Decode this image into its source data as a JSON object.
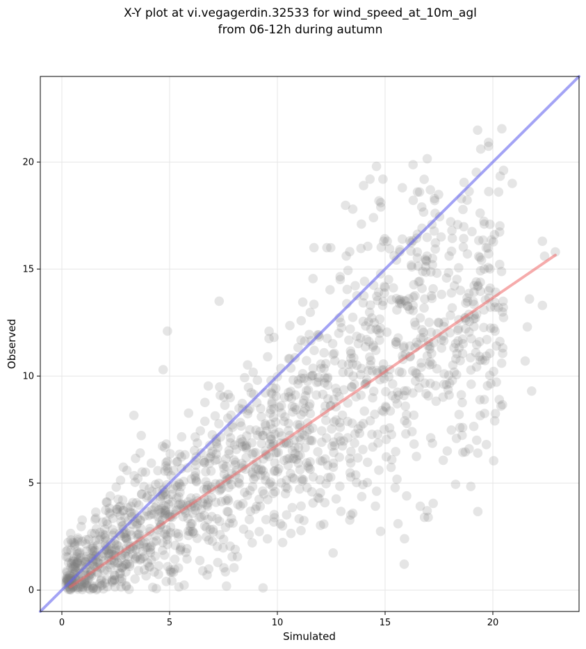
{
  "chart_data": {
    "type": "scatter",
    "title_lines": [
      "X-Y plot at vi.vegagerdin.32533 for wind_speed_at_10m_agl",
      "from 06-12h during autumn"
    ],
    "xlabel": "Simulated",
    "ylabel": "Observed",
    "xlim": [
      -1,
      24
    ],
    "ylim": [
      -1,
      24
    ],
    "xticks": [
      0,
      5,
      10,
      15,
      20
    ],
    "yticks": [
      0,
      5,
      10,
      15,
      20
    ],
    "grid": true,
    "colors": {
      "points": "#7f7f7f",
      "identity_line": "#6666ee",
      "fit_line": "#ee6666",
      "grid": "#e6e6e6"
    },
    "identity_line": {
      "x": [
        -1,
        24
      ],
      "y": [
        -1,
        24
      ]
    },
    "fit_line": {
      "x": [
        0.4,
        22.9
      ],
      "y": [
        0.15,
        15.65
      ]
    },
    "highlighted_points": [
      [
        14.6,
        19.8
      ],
      [
        14.3,
        19.2
      ],
      [
        14.9,
        19.2
      ],
      [
        14.0,
        18.9
      ],
      [
        15.8,
        18.8
      ],
      [
        16.5,
        18.6
      ],
      [
        16.6,
        18.6
      ],
      [
        17.1,
        18.7
      ],
      [
        20.9,
        19.0
      ],
      [
        17.3,
        18.2
      ],
      [
        14.8,
        18.1
      ],
      [
        14.8,
        17.9
      ],
      [
        16.7,
        17.9
      ],
      [
        13.5,
        17.8
      ],
      [
        19.6,
        17.1
      ],
      [
        13.9,
        17.1
      ],
      [
        18.1,
        16.8
      ],
      [
        22.3,
        16.3
      ],
      [
        17.6,
        16.5
      ],
      [
        22.9,
        15.8
      ],
      [
        22.4,
        15.6
      ],
      [
        12.3,
        16.0
      ],
      [
        11.7,
        16.0
      ],
      [
        15.1,
        16.3
      ],
      [
        15.8,
        16.4
      ],
      [
        16.9,
        15.4
      ],
      [
        17.2,
        15.5
      ],
      [
        19.6,
        15.0
      ],
      [
        21.7,
        13.6
      ],
      [
        22.3,
        13.3
      ],
      [
        21.6,
        12.3
      ],
      [
        20.1,
        12.1
      ],
      [
        21.5,
        10.7
      ],
      [
        21.8,
        9.3
      ],
      [
        20.3,
        8.9
      ],
      [
        19.6,
        8.9
      ],
      [
        19.3,
        6.4
      ],
      [
        18.9,
        6.6
      ],
      [
        19.7,
        6.8
      ],
      [
        17.0,
        3.4
      ],
      [
        16.0,
        4.4
      ],
      [
        15.9,
        2.4
      ],
      [
        15.6,
        3.1
      ],
      [
        4.9,
        12.1
      ],
      [
        7.3,
        13.5
      ],
      [
        4.7,
        10.3
      ],
      [
        2.3,
        1.4
      ],
      [
        1.1,
        0.7
      ]
    ],
    "random_cloud": {
      "count": 1500,
      "seed": 7,
      "x_range": [
        0.2,
        20.5
      ],
      "slope": 0.7,
      "intercept": 0.1,
      "noise_base": 0.9,
      "noise_scale": 0.16
    }
  }
}
